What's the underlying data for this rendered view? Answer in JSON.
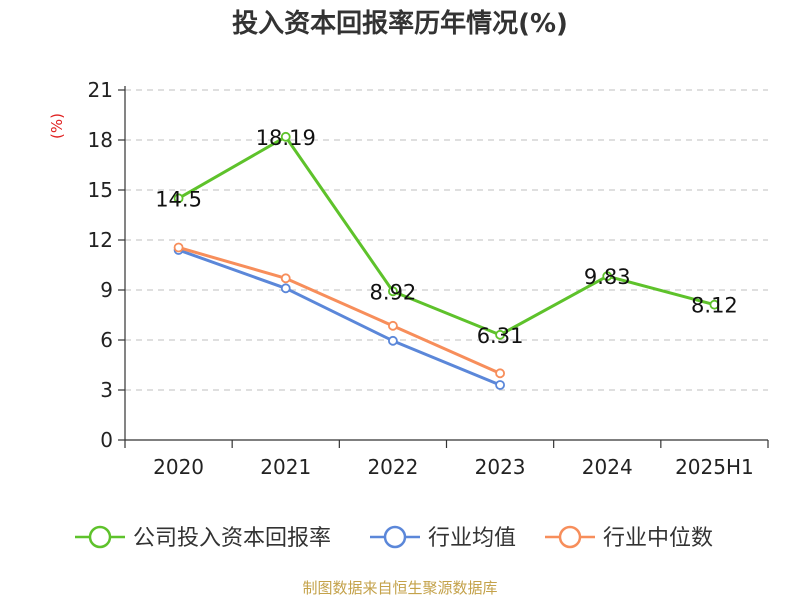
{
  "title": "投入资本回报率历年情况(%)",
  "source": "制图数据来自恒生聚源数据库",
  "colors": {
    "company": "#5ec22b",
    "industry_avg": "#5b87d9",
    "industry_median": "#f78e5b",
    "grid": "#cccccc",
    "axis": "#333333",
    "unit": "#e02020"
  },
  "chart_data": {
    "type": "line",
    "title": "投入资本回报率历年情况(%)",
    "ylabel": "(%)",
    "xlabel": "",
    "categories": [
      "2020",
      "2021",
      "2022",
      "2023",
      "2024",
      "2025H1"
    ],
    "ylim": [
      0,
      21
    ],
    "yticks": [
      0,
      3,
      6,
      9,
      12,
      15,
      18,
      21
    ],
    "grid": true,
    "legend_position": "bottom",
    "series": [
      {
        "name": "公司投入资本回报率",
        "color_key": "company",
        "values": [
          14.5,
          18.19,
          8.92,
          6.31,
          9.83,
          8.12
        ],
        "labels": [
          "14.5",
          "18.19",
          "8.92",
          "6.31",
          "9.83",
          "8.12"
        ]
      },
      {
        "name": "行业均值",
        "color_key": "industry_avg",
        "values": [
          11.4,
          9.1,
          5.95,
          3.3,
          null,
          null
        ]
      },
      {
        "name": "行业中位数",
        "color_key": "industry_median",
        "values": [
          11.55,
          9.7,
          6.85,
          4.0,
          null,
          null
        ]
      }
    ]
  }
}
